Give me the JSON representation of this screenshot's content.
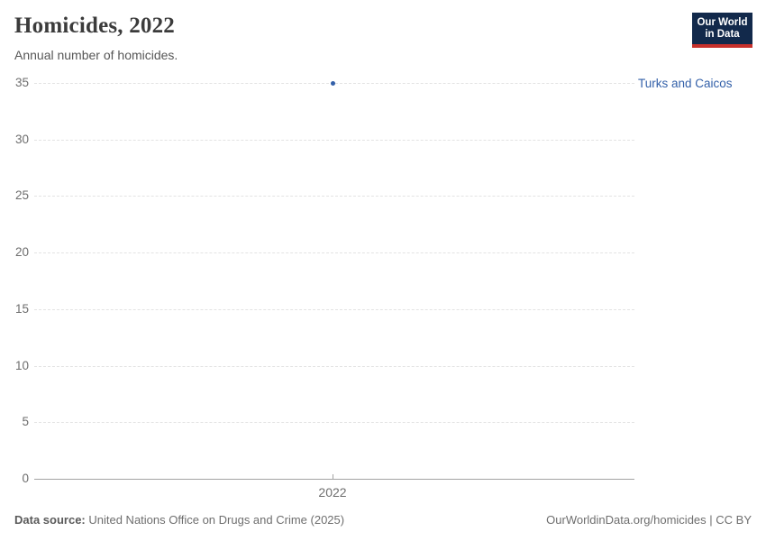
{
  "header": {
    "title": "Homicides, 2022",
    "subtitle": "Annual number of homicides."
  },
  "logo": {
    "line1": "Our World",
    "line2": "in Data"
  },
  "chart_data": {
    "type": "scatter",
    "title": "Homicides, 2022",
    "subtitle": "Annual number of homicides.",
    "x": [
      2022
    ],
    "series": [
      {
        "name": "Turks and Caicos",
        "values": [
          35
        ]
      }
    ],
    "xticks": [
      "2022"
    ],
    "yticks": [
      0,
      5,
      10,
      15,
      20,
      25,
      30,
      35
    ],
    "ylim": [
      0,
      35
    ],
    "xlabel": "",
    "ylabel": "",
    "grid": "horizontal-dashed",
    "legend_position": "right-of-point",
    "point_color": "#3360a9"
  },
  "footer": {
    "source_label": "Data source:",
    "source_text": " United Nations Office on Drugs and Crime (2025)",
    "link_text": "OurWorldinData.org/homicides | CC BY"
  },
  "colors": {
    "accent_blue": "#3360a9",
    "logo_navy": "#12294b",
    "logo_red": "#c7302b",
    "gridline": "#e3e3e3",
    "axis": "#a3a3a3"
  }
}
